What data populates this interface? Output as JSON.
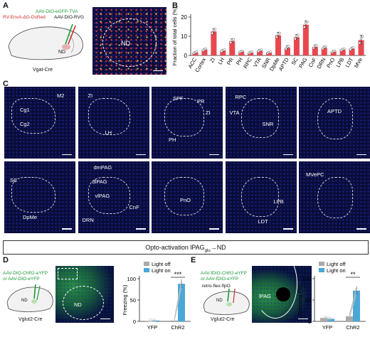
{
  "panelA": {
    "letter": "A",
    "virus1": "AAV-DIO-eGFP-TVA",
    "virus2": "RV-EnvA-ΔG-DsRed",
    "virus3": "AAV-DIO-RVG",
    "region": "ND",
    "mouse": "Vgat-Cre",
    "micro_label": "ND"
  },
  "panelB": {
    "letter": "B"
  },
  "panelC": {
    "letter": "C",
    "tiles": [
      {
        "labels": [
          "M2",
          "Cg1",
          "Cg2"
        ]
      },
      {
        "labels": [
          "ZI",
          "LH"
        ]
      },
      {
        "labels": [
          "SPF",
          "PR",
          "ZI",
          "PH"
        ]
      },
      {
        "labels": [
          "RPC",
          "VTA",
          "SNR"
        ]
      },
      {
        "labels": [
          "APTD"
        ]
      },
      {
        "labels": [
          "SC",
          "DpMe"
        ]
      },
      {
        "labels": [
          "dmPAG",
          "dlPAG",
          "vlPAG",
          "DRN",
          "CnF"
        ]
      },
      {
        "labels": [
          "PnO"
        ]
      },
      {
        "labels": [
          "LPB",
          "LDT"
        ]
      },
      {
        "labels": [
          "MVePC"
        ]
      }
    ]
  },
  "banner": {
    "pre": "Opto-activation lPAG",
    "sub": "glu",
    "post": "→ND"
  },
  "panelD": {
    "letter": "D",
    "virus1": "AAV-DIO-ChR2-eYFP",
    "virus2": "or AAV-DIO-eYFP",
    "region": "ND",
    "mouse": "Vglut2-Cre",
    "micro_label": "ND"
  },
  "panelE": {
    "letter": "E",
    "virus1": "AAV-fDIO-ChR2-eYFP",
    "virus2": "or AAV-fDIO-eYFP",
    "virus3": "retro-flex-flpO",
    "region": "ND",
    "mouse": "Vglut2-Cre",
    "micro_label": "lPAG"
  },
  "chart_data": [
    {
      "type": "bar",
      "panel": "B",
      "ylabel": "Fraction of total cells (%)",
      "ylim": [
        0,
        20
      ],
      "yticks": [
        0,
        10,
        20
      ],
      "categories": [
        "ACC",
        "Cortex",
        "ZI",
        "LH",
        "PR",
        "PH",
        "RPC",
        "VTA",
        "SNR",
        "DpMe",
        "APTD",
        "SC",
        "PAG",
        "CnF",
        "DRN",
        "PnO",
        "LPB",
        "LDT",
        "MVe"
      ],
      "values": [
        1.5,
        3.0,
        12.5,
        2.5,
        7.5,
        2.0,
        1.5,
        2.5,
        1.5,
        10.5,
        4.0,
        9.5,
        16.0,
        4.5,
        4.0,
        2.0,
        3.0,
        3.5,
        8.0
      ],
      "errors": [
        0.5,
        0.6,
        1.5,
        0.6,
        1.2,
        0.5,
        0.5,
        0.6,
        0.4,
        1.5,
        1.0,
        1.5,
        2.0,
        1.0,
        0.8,
        0.5,
        0.6,
        0.8,
        2.5
      ],
      "color": "#e8474f"
    },
    {
      "type": "bar",
      "panel": "D",
      "ylabel": "Freezing (%)",
      "ylim": [
        0,
        100
      ],
      "yticks": [
        0,
        50,
        100
      ],
      "categories": [
        "YFP",
        "ChR2"
      ],
      "series": [
        {
          "name": "Light off",
          "values": [
            1,
            2
          ],
          "color": "#aaaaaa"
        },
        {
          "name": "Light on",
          "values": [
            2,
            88
          ],
          "color": "#4aa8d8"
        }
      ],
      "significance": "***"
    },
    {
      "type": "bar",
      "panel": "E",
      "ylabel": "Freezing (%)",
      "ylim": [
        0,
        100
      ],
      "yticks": [
        0,
        50,
        100
      ],
      "categories": [
        "YFP",
        "ChR2"
      ],
      "series": [
        {
          "name": "Light off",
          "values": [
            8,
            12
          ],
          "color": "#aaaaaa"
        },
        {
          "name": "Light on",
          "values": [
            6,
            72
          ],
          "color": "#4aa8d8"
        }
      ],
      "significance": "**"
    }
  ]
}
